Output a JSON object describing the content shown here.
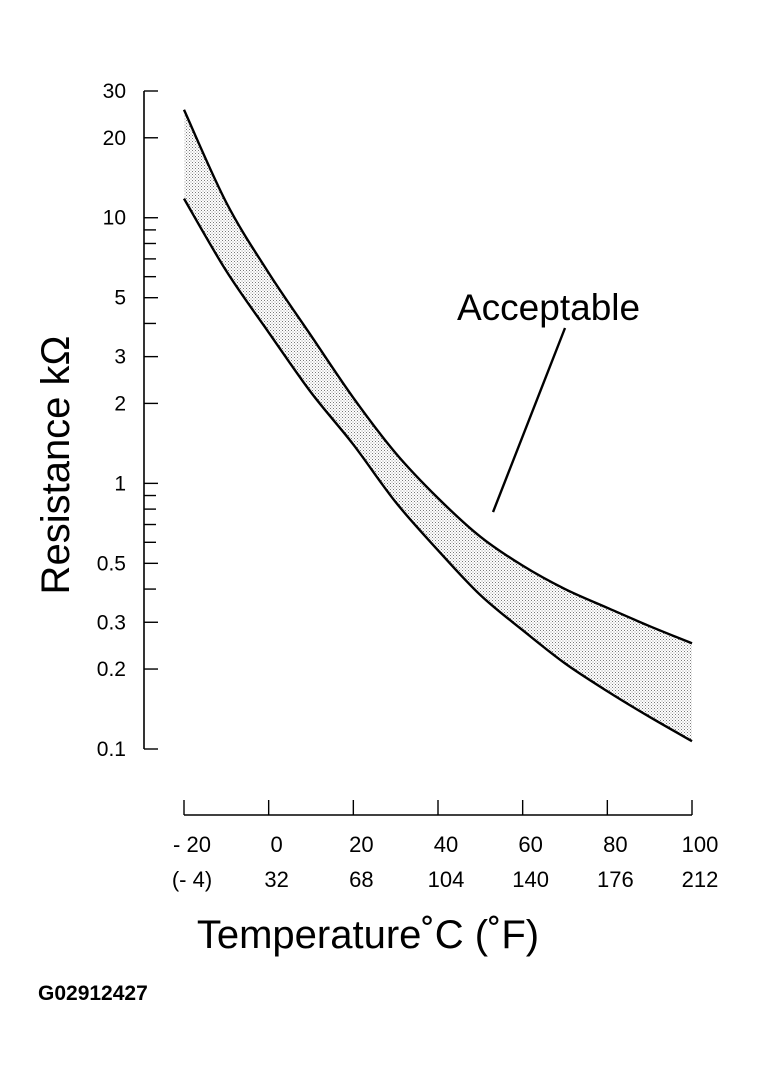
{
  "chart_data": {
    "type": "area",
    "ylabel": "Resistance kΩ",
    "xlabel": "Temperature˚C (˚F)",
    "y_scale": "log",
    "ylim": [
      0.1,
      30
    ],
    "xlim": [
      -20,
      100
    ],
    "y_ticks_major": [
      {
        "value": 30,
        "label": "30"
      },
      {
        "value": 20,
        "label": "20"
      },
      {
        "value": 10,
        "label": "10"
      },
      {
        "value": 5,
        "label": "5"
      },
      {
        "value": 3,
        "label": "3"
      },
      {
        "value": 2,
        "label": "2"
      },
      {
        "value": 1,
        "label": "1"
      },
      {
        "value": 0.5,
        "label": "0.5"
      },
      {
        "value": 0.3,
        "label": "0.3"
      },
      {
        "value": 0.2,
        "label": "0.2"
      },
      {
        "value": 0.1,
        "label": "0.1"
      }
    ],
    "y_ticks_minor": [
      9,
      8,
      7,
      6,
      4,
      0.9,
      0.8,
      0.7,
      0.6,
      0.4
    ],
    "x_ticks": [
      {
        "value": -20,
        "celsius": "- 20",
        "fahrenheit": "(- 4)"
      },
      {
        "value": 0,
        "celsius": "0",
        "fahrenheit": "32"
      },
      {
        "value": 20,
        "celsius": "20",
        "fahrenheit": "68"
      },
      {
        "value": 40,
        "celsius": "40",
        "fahrenheit": "104"
      },
      {
        "value": 60,
        "celsius": "60",
        "fahrenheit": "140"
      },
      {
        "value": 80,
        "celsius": "80",
        "fahrenheit": "176"
      },
      {
        "value": 100,
        "celsius": "100",
        "fahrenheit": "212"
      }
    ],
    "x": [
      -20,
      -10,
      0,
      10,
      20,
      30,
      40,
      50,
      60,
      70,
      80,
      90,
      100
    ],
    "series": [
      {
        "values": [
          25.5,
          11.4,
          6.2,
          3.6,
          2.1,
          1.3,
          0.88,
          0.63,
          0.49,
          0.4,
          0.34,
          0.29,
          0.25
        ]
      },
      {
        "values": [
          11.8,
          6.3,
          3.7,
          2.2,
          1.4,
          0.85,
          0.56,
          0.38,
          0.28,
          0.21,
          0.165,
          0.132,
          0.107
        ]
      }
    ],
    "fill_between_series": true,
    "annotations": [
      {
        "text": "Acceptable",
        "points_to": {
          "x": 53,
          "y": 0.78
        }
      }
    ],
    "grid": false
  },
  "figure_id": "G02912427"
}
